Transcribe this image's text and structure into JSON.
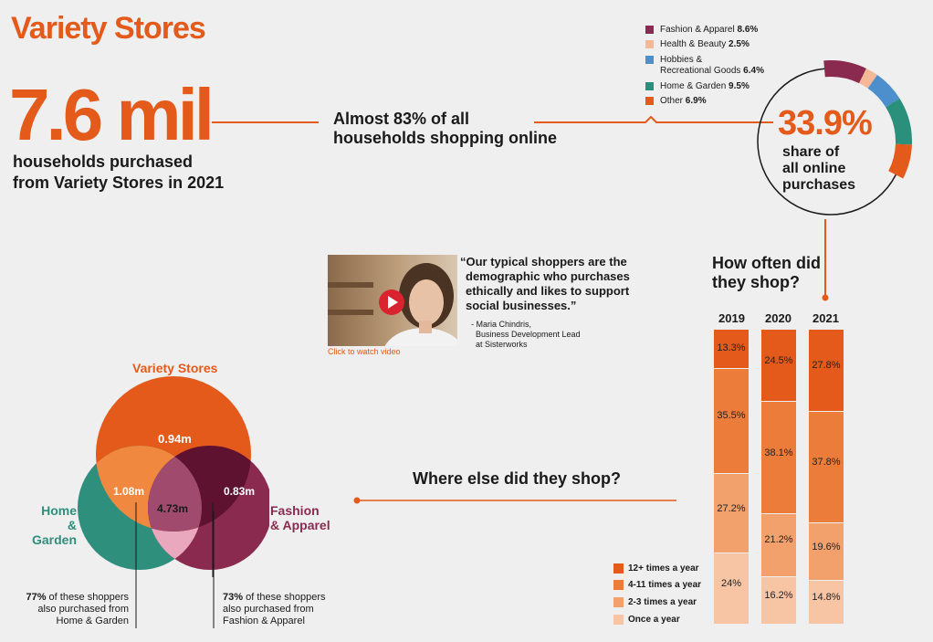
{
  "title": "Variety Stores",
  "headline": {
    "value": "7.6 mil",
    "line1": "households purchased",
    "line2": "from Variety Stores in 2021"
  },
  "online": {
    "line1": "Almost 83% of all",
    "line2": "households shopping online"
  },
  "share": {
    "percent": "33.9%",
    "line1": "share of",
    "line2": "all online",
    "line3": "purchases"
  },
  "chart_data": [
    {
      "type": "pie",
      "title": "",
      "categories": [
        "Fashion & Apparel",
        "Health & Beauty",
        "Hobbies & Recreational Goods",
        "Home & Garden",
        "Other"
      ],
      "values": [
        8.6,
        2.5,
        6.4,
        9.5,
        6.9
      ],
      "total_label": "33.9%",
      "colors": [
        "#8b2a4f",
        "#f5b896",
        "#4d8fcc",
        "#2a8f7b",
        "#e35a1a"
      ],
      "legend": [
        {
          "name": "Fashion & Apparel",
          "value": "8.6%"
        },
        {
          "name": "Health & Beauty",
          "value": "2.5%"
        },
        {
          "name": "Hobbies &",
          "name2": "Recreational Goods",
          "value": "6.4%"
        },
        {
          "name": "Home & Garden",
          "value": "9.5%"
        },
        {
          "name": "Other",
          "value": "6.9%"
        }
      ]
    },
    {
      "type": "bar",
      "stacked": true,
      "title": "How often did they shop?",
      "categories": [
        "2019",
        "2020",
        "2021"
      ],
      "ylim": [
        0,
        100
      ],
      "series": [
        {
          "name": "12+ times a year",
          "values": [
            13.3,
            24.5,
            27.8
          ],
          "labels": [
            "13.3%",
            "24.5%",
            "27.8%"
          ],
          "color": "#e35a1a"
        },
        {
          "name": "4-11 times a year",
          "values": [
            35.5,
            38.1,
            37.8
          ],
          "labels": [
            "35.5%",
            "38.1%",
            "37.8%"
          ],
          "color": "#ec7c3a"
        },
        {
          "name": "2-3 times a year",
          "values": [
            27.2,
            21.2,
            19.6
          ],
          "labels": [
            "27.2%",
            "21.2%",
            "19.6%"
          ],
          "color": "#f2a16d"
        },
        {
          "name": "Once a year",
          "values": [
            24,
            16.2,
            14.8
          ],
          "labels": [
            "24%",
            "16.2%",
            "14.8%"
          ],
          "color": "#f7c5a3"
        }
      ]
    }
  ],
  "how_often": {
    "line1": "How often did",
    "line2": "they shop?"
  },
  "video": {
    "click_label": "Click to watch video",
    "quote_lines": [
      "“Our typical shoppers are the",
      "demographic who purchases",
      "ethically and likes to support",
      "social businesses.”"
    ],
    "attribution": [
      "- Maria Chindris,",
      "Business Development Lead",
      "at Sisterworks"
    ]
  },
  "where_else": "Where else did they shop?",
  "venn": {
    "top_label": "Variety Stores",
    "left_label1": "Home",
    "left_label2": "& Garden",
    "right_label1": "Fashion",
    "right_label2": "& Apparel",
    "top_only": "0.94m",
    "top_left": "1.08m",
    "top_right": "0.83m",
    "center": "4.73m",
    "colors": {
      "top": "#e35a1a",
      "left": "#2f8f7d",
      "right": "#8b2a4f",
      "top_left": "#f0893f",
      "top_right": "#5e1230",
      "center": "#a04a6e",
      "left_right": "#e9a8bd"
    }
  },
  "notes": {
    "left": {
      "bold": "77%",
      "rest1": " of these shoppers",
      "line2": "also purchased from",
      "line3": "Home & Garden"
    },
    "right": {
      "bold": "73%",
      "rest1": " of these shoppers",
      "line2": "also purchased from",
      "line3": "Fashion & Apparel"
    }
  }
}
